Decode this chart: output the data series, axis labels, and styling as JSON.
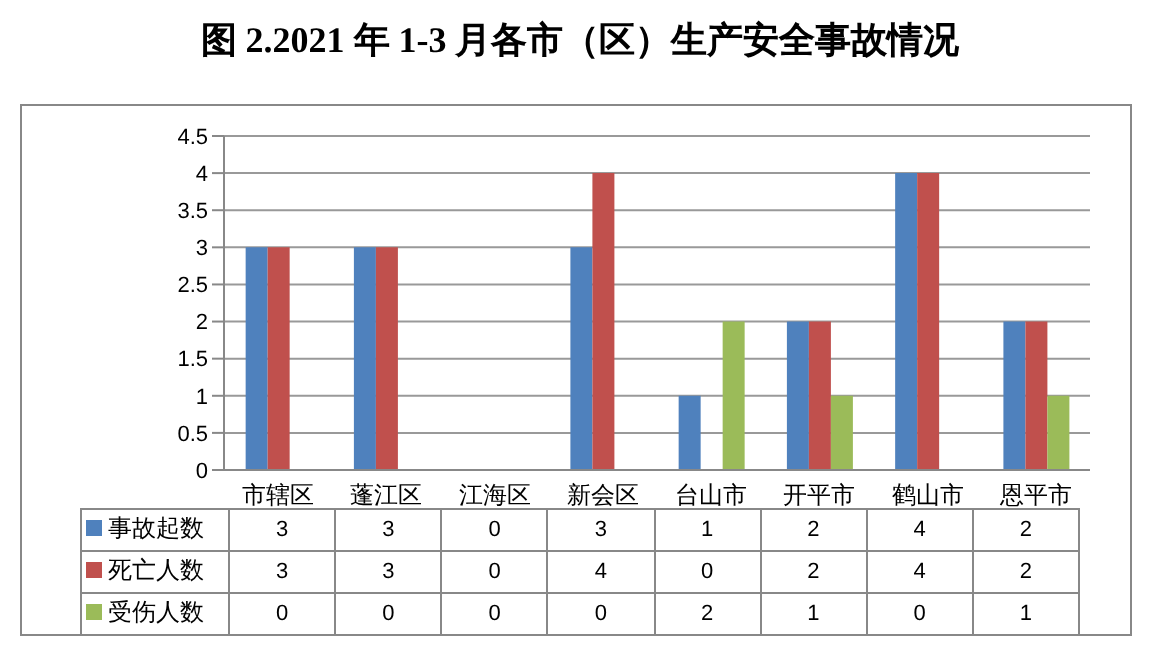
{
  "chart_data": {
    "type": "bar",
    "title": "图 2.2021 年 1-3 月各市（区）生产安全事故情况",
    "categories": [
      "市辖区",
      "蓬江区",
      "江海区",
      "新会区",
      "台山市",
      "开平市",
      "鹤山市",
      "恩平市"
    ],
    "series": [
      {
        "name": "事故起数",
        "color": "#4f81bd",
        "values": [
          3,
          3,
          0,
          3,
          1,
          2,
          4,
          2
        ]
      },
      {
        "name": "死亡人数",
        "color": "#c0504d",
        "values": [
          3,
          3,
          0,
          4,
          0,
          2,
          4,
          2
        ]
      },
      {
        "name": "受伤人数",
        "color": "#9bbb59",
        "values": [
          0,
          0,
          0,
          0,
          2,
          1,
          0,
          1
        ]
      }
    ],
    "ylim": [
      0,
      4.5
    ],
    "yticks": [
      0,
      0.5,
      1,
      1.5,
      2,
      2.5,
      3,
      3.5,
      4,
      4.5
    ],
    "grid": "y",
    "legend": "bottom",
    "data_labels": true
  }
}
